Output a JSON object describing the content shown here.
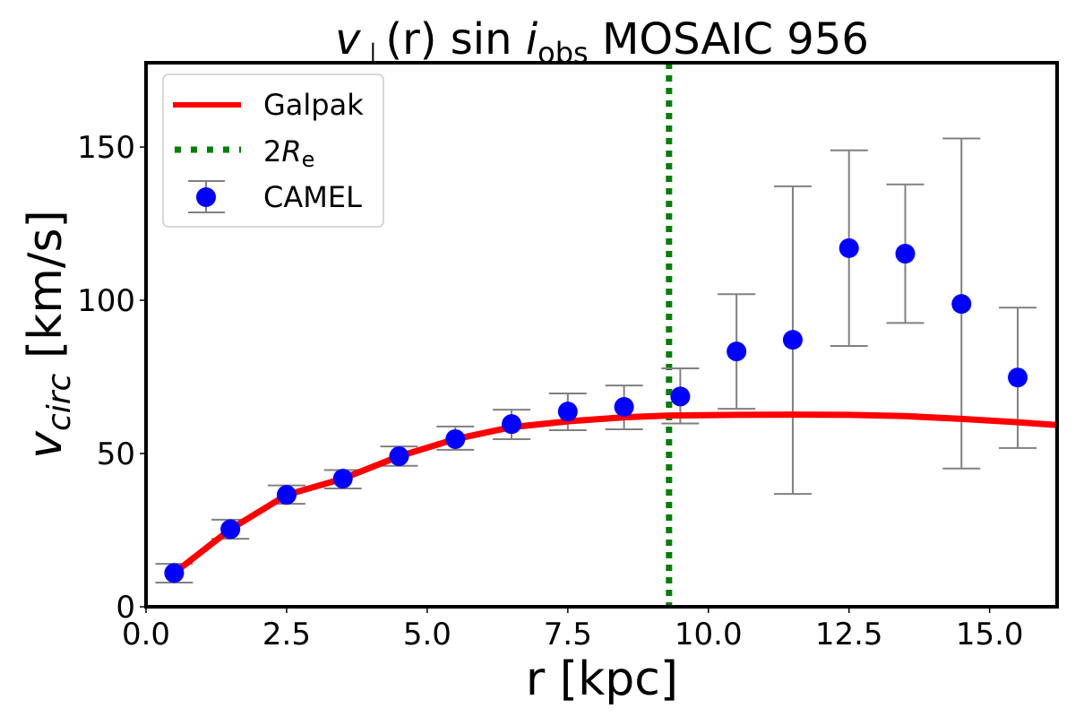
{
  "chart_data": {
    "type": "scatter",
    "title": {
      "v": "v",
      "sub1": "⊥",
      "mid": "(r) sin ",
      "i": "i",
      "sub2": "obs",
      "tail": " MOSAIC 956"
    },
    "xlabel": "r [kpc]",
    "ylabel": {
      "v": "v",
      "sub": "circ",
      "tail": " [km/s]"
    },
    "xlim": [
      0,
      16.2
    ],
    "ylim": [
      0,
      177.5
    ],
    "xticks": [
      0,
      2.5,
      5,
      7.5,
      10,
      12.5,
      15
    ],
    "xtick_labels": [
      "0.0",
      "2.5",
      "5.0",
      "7.5",
      "10.0",
      "12.5",
      "15.0"
    ],
    "yticks": [
      0,
      50,
      100,
      150
    ],
    "ytick_labels": [
      "0",
      "50",
      "100",
      "150"
    ],
    "grid": false,
    "legend_position": "top-left",
    "legend": {
      "galpak": "Galpak",
      "re": {
        "pre": "2",
        "R": "R",
        "sub": "e"
      },
      "camel": "CAMEL"
    },
    "colors": {
      "galpak": "#ff0000",
      "re": "#008000",
      "camel": "#0000ff",
      "errorbar": "#808080"
    },
    "galpak_curve": {
      "x": [
        0.5,
        1.5,
        2.5,
        3.5,
        4.5,
        5.5,
        6.5,
        7.5,
        8.5,
        9.3,
        10.5,
        11.5,
        12.5,
        13.5,
        14.5,
        15.5,
        16.2
      ],
      "y": [
        11,
        25.3,
        36.5,
        41.8,
        49.1,
        54.7,
        58.6,
        60.5,
        61.8,
        62.4,
        62.6,
        62.7,
        62.6,
        62.2,
        61.3,
        60.2,
        59.3
      ]
    },
    "two_re": 9.3,
    "camel": {
      "x": [
        0.5,
        1.5,
        2.5,
        3.5,
        4.5,
        5.5,
        6.5,
        7.5,
        8.5,
        9.5,
        10.5,
        11.5,
        12.5,
        13.5,
        14.5,
        15.5
      ],
      "y": [
        11,
        25.3,
        36.5,
        41.8,
        49.1,
        54.7,
        59.6,
        63.7,
        65.2,
        68.6,
        83.3,
        87.1,
        117,
        115.2,
        98.8,
        74.8
      ],
      "y_upper": [
        14.0,
        28.4,
        39.6,
        44.6,
        52.3,
        58.8,
        64.3,
        69.6,
        72.2,
        77.8,
        102,
        137.2,
        148.9,
        137.8,
        152.8,
        97.6
      ],
      "y_lower": [
        7.9,
        22.2,
        33.6,
        38.6,
        46.0,
        51.2,
        54.7,
        57.6,
        57.9,
        59.8,
        64.6,
        36.8,
        85.1,
        92.6,
        45.1,
        51.8
      ]
    }
  }
}
